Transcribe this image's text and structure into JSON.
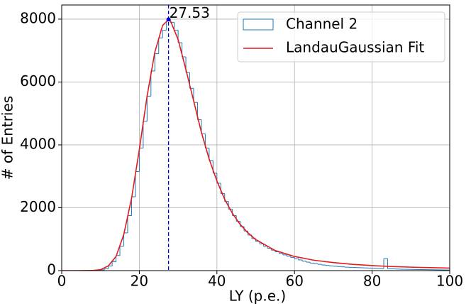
{
  "chart_data": {
    "type": "histogram",
    "xlabel": "LY (p.e.)",
    "ylabel": "# of Entries",
    "bins": [
      0,
      1,
      2,
      3,
      4,
      5,
      6,
      7,
      8,
      9,
      10,
      11,
      12,
      13,
      14,
      15,
      16,
      17,
      18,
      19,
      20,
      21,
      22,
      23,
      24,
      25,
      26,
      27,
      28,
      29,
      30,
      31,
      32,
      33,
      34,
      35,
      36,
      37,
      38,
      39,
      40,
      41,
      42,
      43,
      44,
      45,
      46,
      47,
      48,
      49,
      50,
      51,
      52,
      53,
      54,
      55,
      56,
      57,
      58,
      59,
      60,
      61,
      62,
      63,
      64,
      65,
      66,
      67,
      68,
      69,
      70,
      71,
      72,
      73,
      74,
      75,
      76,
      77,
      78,
      79,
      80,
      81,
      82,
      83,
      84,
      85,
      86,
      87,
      88,
      89,
      90,
      91,
      92,
      93,
      94,
      95,
      96,
      97,
      98,
      99,
      100
    ],
    "series": [
      {
        "name": "Channel 2",
        "color": "#1f77b4",
        "values": [
          0,
          0,
          0,
          0,
          0,
          0,
          0,
          0,
          2,
          8,
          25,
          60,
          150,
          280,
          480,
          780,
          1200,
          1750,
          2350,
          3150,
          3900,
          4750,
          5550,
          6350,
          6900,
          7400,
          7650,
          7950,
          7900,
          7650,
          7250,
          6800,
          6300,
          5800,
          5350,
          4800,
          4350,
          3900,
          3500,
          3100,
          2780,
          2450,
          2200,
          1950,
          1750,
          1570,
          1400,
          1260,
          1130,
          1020,
          930,
          850,
          780,
          710,
          650,
          600,
          550,
          500,
          460,
          420,
          380,
          340,
          300,
          270,
          240,
          220,
          200,
          180,
          165,
          150,
          140,
          130,
          120,
          110,
          105,
          100,
          95,
          90,
          85,
          80,
          75,
          70,
          65,
          380,
          60,
          55,
          50,
          45,
          42,
          40,
          38,
          36,
          34,
          32,
          30,
          28,
          26,
          24,
          22,
          20
        ]
      },
      {
        "name": "LandauGaussian Fit",
        "color": "#e41a1c",
        "x": [
          0,
          4,
          8,
          10,
          12,
          14,
          16,
          18,
          20,
          22,
          24,
          26,
          27.5,
          28,
          30,
          32,
          34,
          36,
          38,
          40,
          42,
          44,
          46,
          48,
          50,
          55,
          60,
          65,
          70,
          75,
          80,
          85,
          90,
          95,
          100
        ],
        "values": [
          0,
          0,
          5,
          30,
          150,
          450,
          1150,
          2300,
          3850,
          5550,
          6950,
          7800,
          7980,
          7950,
          7350,
          6400,
          5400,
          4400,
          3550,
          2850,
          2270,
          1820,
          1470,
          1200,
          990,
          640,
          450,
          330,
          255,
          200,
          160,
          130,
          110,
          95,
          80
        ]
      }
    ],
    "peak": {
      "x": 27.53,
      "y": 7990,
      "color": "#0000cc"
    },
    "xlim": [
      0,
      100
    ],
    "xticks": [
      0,
      20,
      40,
      60,
      80,
      100
    ],
    "ylim": [
      0,
      8450
    ],
    "yticks": [
      0,
      2000,
      4000,
      6000,
      8000
    ],
    "grid": true,
    "legend": "upper right"
  }
}
